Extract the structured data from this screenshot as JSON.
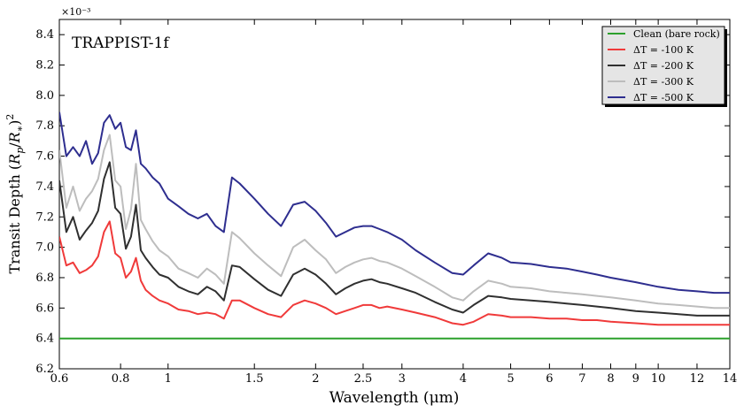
{
  "chart_data": {
    "type": "line",
    "title": "TRAPPIST-1f",
    "xlabel": "Wavelength (μm)",
    "ylabel": "Transit Depth (R_p/R_*)^2",
    "y_multiplier": "×10⁻³",
    "x_scale": "log",
    "xlim": [
      0.6,
      14
    ],
    "ylim": [
      6.2,
      8.5
    ],
    "x_ticks": [
      0.6,
      0.8,
      1,
      1.5,
      2,
      2.5,
      3,
      4,
      5,
      6,
      7,
      8,
      9,
      10,
      12,
      14
    ],
    "y_ticks": [
      6.2,
      6.4,
      6.6,
      6.8,
      7.0,
      7.2,
      7.4,
      7.6,
      7.8,
      8.0,
      8.2,
      8.4
    ],
    "grid": false,
    "legend_position": "top-right",
    "x": [
      0.6,
      0.62,
      0.64,
      0.66,
      0.68,
      0.7,
      0.72,
      0.74,
      0.76,
      0.78,
      0.8,
      0.82,
      0.84,
      0.86,
      0.88,
      0.9,
      0.93,
      0.96,
      1.0,
      1.05,
      1.1,
      1.15,
      1.2,
      1.25,
      1.3,
      1.35,
      1.4,
      1.5,
      1.6,
      1.7,
      1.8,
      1.9,
      2.0,
      2.1,
      2.2,
      2.3,
      2.4,
      2.5,
      2.6,
      2.7,
      2.8,
      3.0,
      3.2,
      3.5,
      3.8,
      4.0,
      4.2,
      4.5,
      4.8,
      5.0,
      5.5,
      6.0,
      6.5,
      7.0,
      7.5,
      8.0,
      9.0,
      10.0,
      11.0,
      12.0,
      13.0,
      14.0
    ],
    "series": [
      {
        "name": "Clean (bare rock)",
        "color": "#2ca02c",
        "values": [
          6.4,
          6.4,
          6.4,
          6.4,
          6.4,
          6.4,
          6.4,
          6.4,
          6.4,
          6.4,
          6.4,
          6.4,
          6.4,
          6.4,
          6.4,
          6.4,
          6.4,
          6.4,
          6.4,
          6.4,
          6.4,
          6.4,
          6.4,
          6.4,
          6.4,
          6.4,
          6.4,
          6.4,
          6.4,
          6.4,
          6.4,
          6.4,
          6.4,
          6.4,
          6.4,
          6.4,
          6.4,
          6.4,
          6.4,
          6.4,
          6.4,
          6.4,
          6.4,
          6.4,
          6.4,
          6.4,
          6.4,
          6.4,
          6.4,
          6.4,
          6.4,
          6.4,
          6.4,
          6.4,
          6.4,
          6.4,
          6.4,
          6.4,
          6.4,
          6.4,
          6.4,
          6.4
        ]
      },
      {
        "name": "ΔT = -100 K",
        "color": "#f03a3a",
        "values": [
          7.07,
          6.88,
          6.9,
          6.83,
          6.85,
          6.88,
          6.94,
          7.1,
          7.17,
          6.96,
          6.93,
          6.8,
          6.84,
          6.93,
          6.78,
          6.72,
          6.68,
          6.65,
          6.63,
          6.59,
          6.58,
          6.56,
          6.57,
          6.56,
          6.53,
          6.65,
          6.65,
          6.6,
          6.56,
          6.54,
          6.62,
          6.65,
          6.63,
          6.6,
          6.56,
          6.58,
          6.6,
          6.62,
          6.62,
          6.6,
          6.61,
          6.59,
          6.57,
          6.54,
          6.5,
          6.49,
          6.51,
          6.56,
          6.55,
          6.54,
          6.54,
          6.53,
          6.53,
          6.52,
          6.52,
          6.51,
          6.5,
          6.49,
          6.49,
          6.49,
          6.49,
          6.49
        ]
      },
      {
        "name": "ΔT = -200 K",
        "color": "#303030",
        "values": [
          7.44,
          7.1,
          7.2,
          7.05,
          7.11,
          7.16,
          7.24,
          7.45,
          7.56,
          7.26,
          7.22,
          6.99,
          7.07,
          7.28,
          6.98,
          6.93,
          6.87,
          6.82,
          6.8,
          6.74,
          6.71,
          6.69,
          6.74,
          6.71,
          6.65,
          6.88,
          6.87,
          6.79,
          6.72,
          6.68,
          6.82,
          6.86,
          6.82,
          6.76,
          6.69,
          6.73,
          6.76,
          6.78,
          6.79,
          6.77,
          6.76,
          6.73,
          6.7,
          6.64,
          6.59,
          6.57,
          6.62,
          6.68,
          6.67,
          6.66,
          6.65,
          6.64,
          6.63,
          6.62,
          6.61,
          6.6,
          6.58,
          6.57,
          6.56,
          6.55,
          6.55,
          6.55
        ]
      },
      {
        "name": "ΔT = -300 K",
        "color": "#bdbdbd",
        "values": [
          7.64,
          7.26,
          7.4,
          7.24,
          7.32,
          7.37,
          7.45,
          7.64,
          7.74,
          7.44,
          7.4,
          7.12,
          7.25,
          7.55,
          7.18,
          7.12,
          7.04,
          6.98,
          6.94,
          6.86,
          6.83,
          6.8,
          6.86,
          6.82,
          6.76,
          7.1,
          7.06,
          6.96,
          6.88,
          6.81,
          7.0,
          7.05,
          6.98,
          6.92,
          6.83,
          6.87,
          6.9,
          6.92,
          6.93,
          6.91,
          6.9,
          6.86,
          6.81,
          6.74,
          6.67,
          6.65,
          6.71,
          6.78,
          6.76,
          6.74,
          6.73,
          6.71,
          6.7,
          6.69,
          6.68,
          6.67,
          6.65,
          6.63,
          6.62,
          6.61,
          6.6,
          6.6
        ]
      },
      {
        "name": "ΔT = -500 K",
        "color": "#2e2e8f",
        "values": [
          7.89,
          7.6,
          7.66,
          7.6,
          7.7,
          7.55,
          7.62,
          7.82,
          7.87,
          7.78,
          7.82,
          7.66,
          7.64,
          7.77,
          7.55,
          7.52,
          7.46,
          7.42,
          7.32,
          7.27,
          7.22,
          7.19,
          7.22,
          7.14,
          7.1,
          7.46,
          7.42,
          7.32,
          7.22,
          7.14,
          7.28,
          7.3,
          7.24,
          7.16,
          7.07,
          7.1,
          7.13,
          7.14,
          7.14,
          7.12,
          7.1,
          7.05,
          6.98,
          6.9,
          6.83,
          6.82,
          6.88,
          6.96,
          6.93,
          6.9,
          6.89,
          6.87,
          6.86,
          6.84,
          6.82,
          6.8,
          6.77,
          6.74,
          6.72,
          6.71,
          6.7,
          6.7
        ]
      }
    ]
  }
}
